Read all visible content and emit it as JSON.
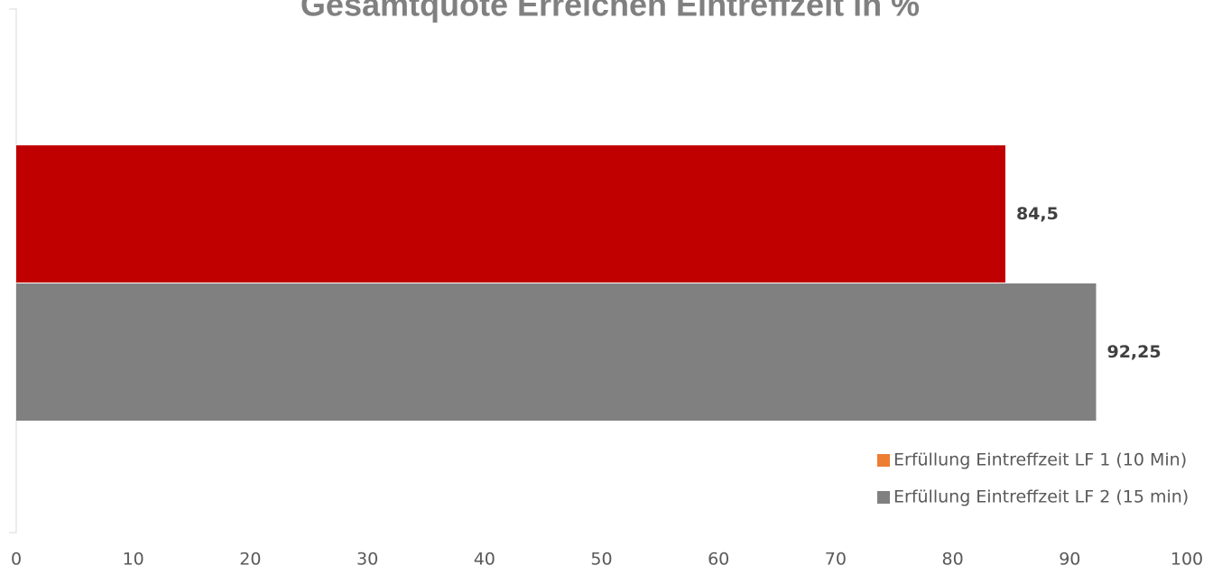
{
  "chart_data": {
    "type": "bar",
    "orientation": "horizontal",
    "title": "Gesamtquote Erreichen Eintreffzeit in %",
    "categories": [
      null
    ],
    "series": [
      {
        "name": "Erfüllung Eintreffzeit LF 1 (10 Min)",
        "color": "#c00000",
        "legend_color": "#ed7d31",
        "values": [
          84.5
        ],
        "value_labels": [
          "84,5"
        ]
      },
      {
        "name": "Erfüllung Eintreffzeit LF 2 (15 min)",
        "color": "#808080",
        "legend_color": "#808080",
        "values": [
          92.25
        ],
        "value_labels": [
          "92,25"
        ]
      }
    ],
    "xlim": [
      0,
      100
    ],
    "xticks": [
      0,
      10,
      20,
      30,
      40,
      50,
      60,
      70,
      80,
      90,
      100
    ],
    "grid": false,
    "legend": "lower right"
  }
}
